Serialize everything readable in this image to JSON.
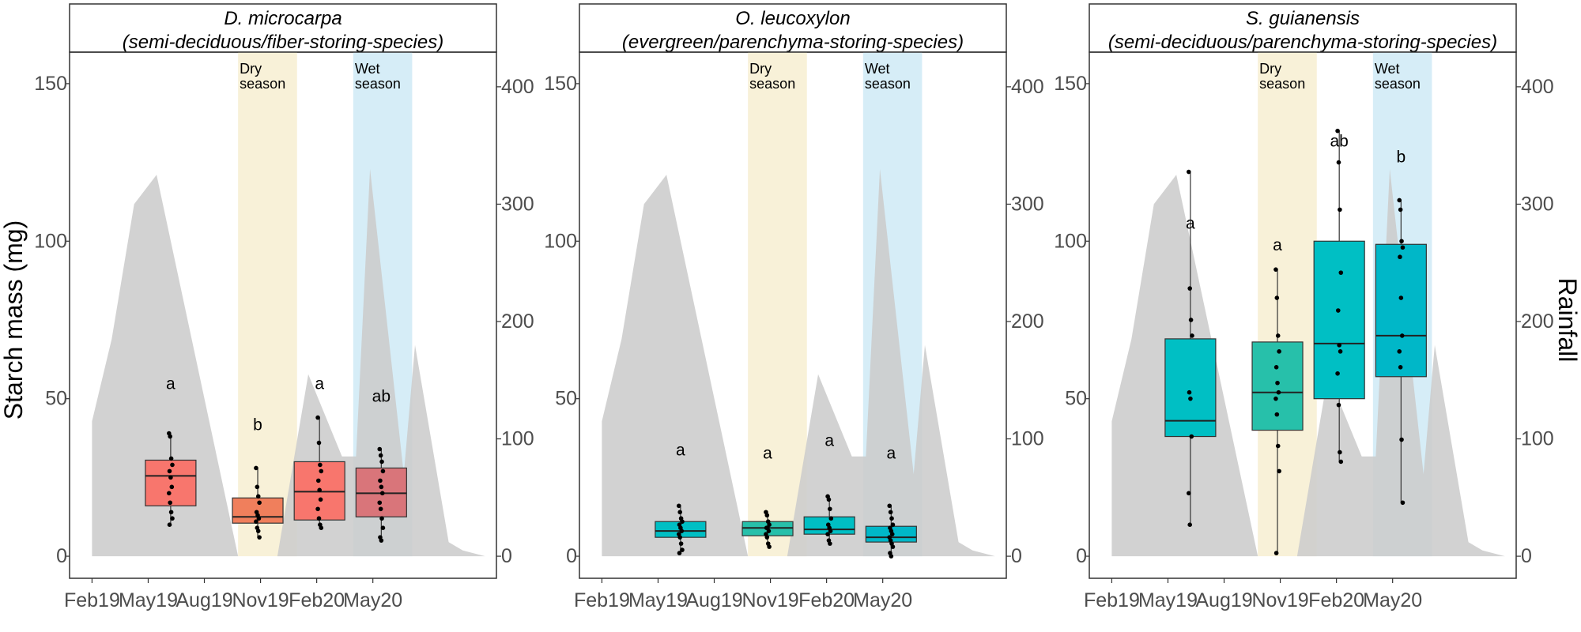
{
  "chart_data": {
    "type": "box",
    "ylabel": "Starch mass (mg)",
    "y2label": "Rainfall",
    "ylim": [
      -7,
      160
    ],
    "yticks": [
      0,
      50,
      100,
      150
    ],
    "y2ticks": [
      0,
      100,
      200,
      300,
      400
    ],
    "y2_to_y": 0.3725,
    "xlim": [
      -0.4,
      7.2
    ],
    "xticks": [
      "Feb19",
      "May19",
      "Aug19",
      "Nov19",
      "Feb20",
      "May20"
    ],
    "seasons": [
      {
        "label_line1": "Dry",
        "label_line2": "season",
        "start": 2.6,
        "end": 3.65,
        "color": "#f8f1d8"
      },
      {
        "label_line1": "Wet",
        "label_line2": "season",
        "start": 4.65,
        "end": 5.7,
        "color": "#d6edf7"
      }
    ],
    "rainfall": {
      "color": "#cccccc",
      "x": [
        0,
        0.35,
        0.75,
        1.15,
        2.6,
        2.85,
        3.3,
        3.85,
        4.45,
        4.7,
        4.95,
        5.55,
        5.75,
        6.35,
        6.6,
        7.0
      ],
      "values": [
        115,
        185,
        300,
        325,
        0,
        0,
        0,
        155,
        85,
        85,
        330,
        70,
        180,
        12,
        5,
        0
      ]
    },
    "panels": [
      {
        "title_line1": "D. microcarpa",
        "title_line2": "(semi-deciduous/fiber-storing-species)",
        "boxes": [
          {
            "x": 1.4,
            "label": "May19",
            "color": "#f8766d",
            "min": 10,
            "q1": 16,
            "median": 25.5,
            "q3": 30.5,
            "max": 39,
            "sig": "a",
            "sig_y": 53,
            "points": [
              39,
              38,
              31,
              29,
              27,
              25,
              22,
              20,
              17,
              14,
              12,
              10
            ]
          },
          {
            "x": 2.95,
            "label": "Aug19",
            "color": "#f07f5c",
            "min": 6,
            "q1": 10.5,
            "median": 12.5,
            "q3": 18.5,
            "max": 28,
            "sig": "b",
            "sig_y": 40,
            "points": [
              28,
              22,
              19,
              17,
              14,
              13,
              12,
              11,
              9,
              8,
              6
            ]
          },
          {
            "x": 4.05,
            "label": "Nov19",
            "color": "#f8766d",
            "min": 9,
            "q1": 11.5,
            "median": 20.5,
            "q3": 30,
            "max": 44,
            "sig": "a",
            "sig_y": 53,
            "points": [
              44,
              36,
              29,
              27,
              24,
              21,
              18,
              15,
              12,
              10,
              9
            ]
          },
          {
            "x": 5.15,
            "label": "Feb20",
            "color": "#d9757a",
            "min": 5,
            "q1": 12.5,
            "median": 20,
            "q3": 28,
            "max": 34,
            "sig": "ab",
            "sig_y": 49,
            "points": [
              34,
              32,
              30,
              27,
              24,
              22,
              20,
              17,
              15,
              12,
              9,
              6,
              5
            ]
          }
        ]
      },
      {
        "title_line1": "O. leucoxylon",
        "title_line2": "(evergreen/parenchyma-storing-species)",
        "boxes": [
          {
            "x": 1.4,
            "label": "May19",
            "color": "#00bfc4",
            "min": 1,
            "q1": 6,
            "median": 8,
            "q3": 11,
            "max": 16,
            "sig": "a",
            "sig_y": 32,
            "points": [
              16,
              14,
              12,
              11,
              10,
              9,
              8,
              7,
              6,
              4,
              2,
              1
            ]
          },
          {
            "x": 2.95,
            "label": "Aug19",
            "color": "#27c0aa",
            "min": 3,
            "q1": 6.5,
            "median": 9,
            "q3": 11,
            "max": 14,
            "sig": "a",
            "sig_y": 31,
            "points": [
              14,
              13,
              11,
              10,
              9,
              9,
              8,
              7,
              6,
              4,
              3
            ]
          },
          {
            "x": 4.05,
            "label": "Nov19",
            "color": "#00bfc4",
            "min": 4,
            "q1": 7,
            "median": 8.5,
            "q3": 12.5,
            "max": 19,
            "sig": "a",
            "sig_y": 35,
            "points": [
              19,
              18,
              15,
              12,
              10,
              9,
              8,
              7,
              5,
              4
            ]
          },
          {
            "x": 5.15,
            "label": "Feb20",
            "color": "#00b7c8",
            "min": 0,
            "q1": 4.5,
            "median": 6,
            "q3": 9.5,
            "max": 16,
            "sig": "a",
            "sig_y": 31,
            "points": [
              16,
              14,
              12,
              10,
              9,
              8,
              7,
              6,
              5,
              4,
              3,
              1,
              0
            ]
          }
        ]
      },
      {
        "title_line1": "S. guianensis",
        "title_line2": "(semi-deciduous/parenchyma-storing-species)",
        "boxes": [
          {
            "x": 1.4,
            "label": "May19",
            "color": "#00bfc4",
            "min": 10,
            "q1": 38,
            "median": 43,
            "q3": 69,
            "max": 122,
            "sig": "a",
            "sig_y": 104,
            "points": [
              122,
              85,
              75,
              70,
              52,
              50,
              38,
              20,
              10
            ]
          },
          {
            "x": 2.95,
            "label": "Aug19",
            "color": "#27c0aa",
            "min": 1,
            "q1": 40,
            "median": 52,
            "q3": 68,
            "max": 91,
            "sig": "a",
            "sig_y": 97,
            "points": [
              91,
              82,
              70,
              65,
              60,
              55,
              52,
              50,
              45,
              35,
              27,
              1
            ]
          },
          {
            "x": 4.05,
            "label": "Nov19",
            "color": "#00bfc4",
            "min": 30,
            "q1": 50,
            "median": 67.5,
            "q3": 100,
            "max": 135,
            "sig": "ab",
            "sig_y": 130,
            "points": [
              135,
              125,
              110,
              90,
              78,
              67,
              65,
              58,
              48,
              33,
              30
            ]
          },
          {
            "x": 5.15,
            "label": "Feb20",
            "color": "#00b7c8",
            "min": 17,
            "q1": 57,
            "median": 70,
            "q3": 99,
            "max": 113,
            "sig": "b",
            "sig_y": 125,
            "points": [
              113,
              110,
              100,
              98,
              95,
              82,
              70,
              65,
              60,
              37,
              17
            ]
          }
        ]
      }
    ]
  }
}
